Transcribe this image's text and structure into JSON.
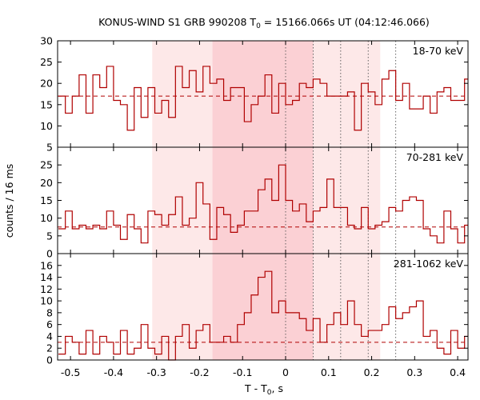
{
  "chart_data": {
    "type": "line",
    "title_prefix": "KONUS-WIND S1 GRB 990208 T",
    "title_sub": "0",
    "title_suffix": " = 15166.066s UT (04:12:46.066)",
    "ylabel": "counts / 16 ms",
    "xlabel_prefix": "T - T",
    "xlabel_sub": "0",
    "xlabel_suffix": ", s",
    "xlim": [
      -0.53,
      0.424
    ],
    "xticks": [
      -0.5,
      -0.4,
      -0.3,
      -0.2,
      -0.1,
      0,
      0.1,
      0.2,
      0.3,
      0.4
    ],
    "xtick_labels": [
      "-0.5",
      "-0.4",
      "-0.3",
      "-0.2",
      "-0.1",
      "0",
      "0.1",
      "0.2",
      "0.3",
      "0.4"
    ],
    "bin_width": 0.016,
    "bin_start": -0.528,
    "line_color": "#b00000",
    "shade_outer": {
      "range": [
        -0.31,
        0.22
      ],
      "color": "#fde8e8"
    },
    "shade_inner": {
      "range": [
        -0.17,
        0.064
      ],
      "color": "#fbd0d4"
    },
    "dotted_lines": [
      0.0,
      0.064,
      0.128,
      0.192,
      0.256
    ],
    "panels": [
      {
        "label": "18-70 keV",
        "ylim": [
          5,
          30
        ],
        "yticks": [
          5,
          10,
          15,
          20,
          25,
          30
        ],
        "ytick_labels": [
          "5",
          "10",
          "15",
          "20",
          "25",
          "30"
        ],
        "background": 17,
        "values": [
          17,
          13,
          17,
          22,
          13,
          22,
          19,
          24,
          16,
          15,
          9,
          19,
          12,
          19,
          13,
          16,
          12,
          24,
          19,
          23,
          18,
          24,
          20,
          21,
          16,
          19,
          19,
          11,
          15,
          17,
          22,
          13,
          20,
          15,
          16,
          20,
          19,
          21,
          20,
          17,
          17,
          17,
          18,
          9,
          20,
          18,
          15,
          21,
          23,
          16,
          20,
          14,
          14,
          17,
          13,
          18,
          19,
          16,
          16,
          21,
          24,
          18,
          13,
          15,
          13,
          16,
          15
        ]
      },
      {
        "label": "70-281 keV",
        "ylim": [
          0,
          30
        ],
        "yticks": [
          0,
          5,
          10,
          15,
          20,
          25
        ],
        "ytick_labels": [
          "0",
          "5",
          "10",
          "15",
          "20",
          "25"
        ],
        "background": 7.5,
        "values": [
          7,
          12,
          7,
          8,
          7,
          8,
          7,
          12,
          8,
          4,
          11,
          7,
          3,
          12,
          11,
          8,
          11,
          16,
          8,
          10,
          20,
          14,
          4,
          13,
          11,
          6,
          8,
          12,
          12,
          18,
          21,
          15,
          25,
          15,
          12,
          14,
          9,
          12,
          13,
          21,
          13,
          13,
          8,
          7,
          13,
          7,
          8,
          9,
          13,
          12,
          15,
          16,
          15,
          7,
          5,
          3,
          12,
          7,
          3,
          8,
          8,
          10,
          8,
          9,
          8,
          6,
          11
        ]
      },
      {
        "label": "281-1062 keV",
        "ylim": [
          0,
          18
        ],
        "yticks": [
          0,
          2,
          4,
          6,
          8,
          10,
          12,
          14,
          16
        ],
        "ytick_labels": [
          "0",
          "2",
          "4",
          "6",
          "8",
          "10",
          "12",
          "14",
          "16"
        ],
        "background": 3,
        "values": [
          1,
          4,
          3,
          1,
          5,
          1,
          4,
          3,
          1,
          5,
          1,
          2,
          6,
          2,
          1,
          4,
          0,
          4,
          6,
          2,
          5,
          6,
          3,
          3,
          4,
          3,
          6,
          8,
          11,
          14,
          15,
          8,
          10,
          8,
          8,
          7,
          5,
          7,
          3,
          6,
          8,
          6,
          10,
          6,
          4,
          5,
          5,
          6,
          9,
          7,
          8,
          9,
          10,
          4,
          5,
          2,
          1,
          5,
          2,
          4,
          3,
          4,
          2,
          4,
          1,
          2,
          3
        ]
      }
    ]
  }
}
